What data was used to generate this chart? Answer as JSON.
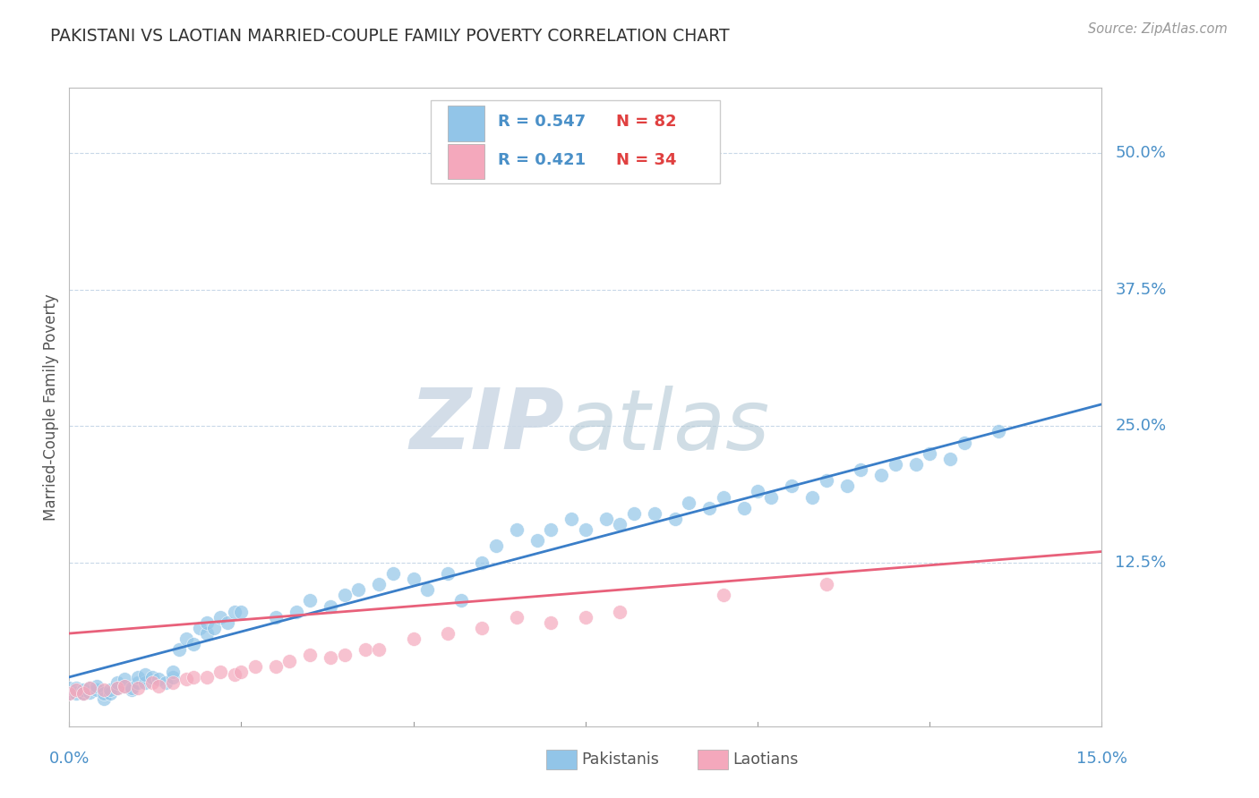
{
  "title": "PAKISTANI VS LAOTIAN MARRIED-COUPLE FAMILY POVERTY CORRELATION CHART",
  "source": "Source: ZipAtlas.com",
  "ylabel": "Married-Couple Family Poverty",
  "ytick_labels": [
    "12.5%",
    "25.0%",
    "37.5%",
    "50.0%"
  ],
  "ytick_values": [
    0.125,
    0.25,
    0.375,
    0.5
  ],
  "xlim": [
    0.0,
    0.15
  ],
  "ylim": [
    -0.025,
    0.56
  ],
  "legend_r1": "R = 0.547",
  "legend_n1": "N = 82",
  "legend_r2": "R = 0.421",
  "legend_n2": "N = 34",
  "color_pakistani": "#92C5E8",
  "color_laotian": "#F4A8BC",
  "color_line_pakistani": "#3A7EC8",
  "color_line_laotian": "#E8607A",
  "background_color": "#ffffff",
  "grid_color": "#c8d8e8",
  "blue_line_x": [
    0.0,
    0.15
  ],
  "blue_line_y": [
    0.02,
    0.27
  ],
  "pink_line_x": [
    0.0,
    0.15
  ],
  "pink_line_y": [
    0.06,
    0.135
  ],
  "pakistani_x": [
    0.0,
    0.0,
    0.001,
    0.001,
    0.002,
    0.002,
    0.003,
    0.003,
    0.004,
    0.004,
    0.005,
    0.005,
    0.006,
    0.006,
    0.007,
    0.007,
    0.008,
    0.008,
    0.009,
    0.009,
    0.01,
    0.01,
    0.011,
    0.011,
    0.012,
    0.013,
    0.014,
    0.015,
    0.015,
    0.016,
    0.017,
    0.018,
    0.019,
    0.02,
    0.02,
    0.021,
    0.022,
    0.023,
    0.024,
    0.025,
    0.03,
    0.033,
    0.035,
    0.038,
    0.04,
    0.042,
    0.045,
    0.047,
    0.05,
    0.052,
    0.055,
    0.057,
    0.06,
    0.062,
    0.065,
    0.068,
    0.07,
    0.073,
    0.075,
    0.078,
    0.08,
    0.082,
    0.085,
    0.088,
    0.09,
    0.093,
    0.095,
    0.098,
    0.1,
    0.102,
    0.105,
    0.108,
    0.11,
    0.113,
    0.115,
    0.118,
    0.12,
    0.123,
    0.125,
    0.128,
    0.13,
    0.135
  ],
  "pakistani_y": [
    0.005,
    0.01,
    0.005,
    0.01,
    0.005,
    0.008,
    0.006,
    0.01,
    0.008,
    0.012,
    0.0,
    0.005,
    0.005,
    0.008,
    0.01,
    0.015,
    0.012,
    0.018,
    0.008,
    0.01,
    0.015,
    0.02,
    0.015,
    0.022,
    0.02,
    0.018,
    0.015,
    0.02,
    0.025,
    0.045,
    0.055,
    0.05,
    0.065,
    0.06,
    0.07,
    0.065,
    0.075,
    0.07,
    0.08,
    0.08,
    0.075,
    0.08,
    0.09,
    0.085,
    0.095,
    0.1,
    0.105,
    0.115,
    0.11,
    0.1,
    0.115,
    0.09,
    0.125,
    0.14,
    0.155,
    0.145,
    0.155,
    0.165,
    0.155,
    0.165,
    0.16,
    0.17,
    0.17,
    0.165,
    0.18,
    0.175,
    0.185,
    0.175,
    0.19,
    0.185,
    0.195,
    0.185,
    0.2,
    0.195,
    0.21,
    0.205,
    0.215,
    0.215,
    0.225,
    0.22,
    0.235,
    0.245
  ],
  "laotian_x": [
    0.0,
    0.001,
    0.002,
    0.003,
    0.005,
    0.007,
    0.008,
    0.01,
    0.012,
    0.013,
    0.015,
    0.017,
    0.018,
    0.02,
    0.022,
    0.024,
    0.025,
    0.027,
    0.03,
    0.032,
    0.035,
    0.038,
    0.04,
    0.043,
    0.045,
    0.05,
    0.055,
    0.06,
    0.065,
    0.07,
    0.075,
    0.08,
    0.095,
    0.11
  ],
  "laotian_y": [
    0.005,
    0.008,
    0.005,
    0.01,
    0.008,
    0.01,
    0.012,
    0.01,
    0.015,
    0.012,
    0.015,
    0.018,
    0.02,
    0.02,
    0.025,
    0.022,
    0.025,
    0.03,
    0.03,
    0.035,
    0.04,
    0.038,
    0.04,
    0.045,
    0.045,
    0.055,
    0.06,
    0.065,
    0.075,
    0.07,
    0.075,
    0.08,
    0.095,
    0.105
  ]
}
